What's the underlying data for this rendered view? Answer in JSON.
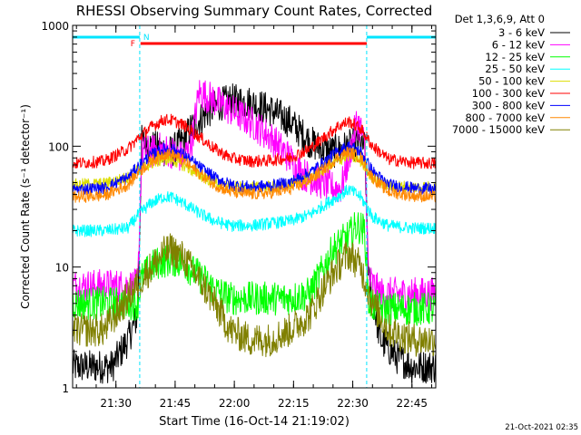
{
  "chart_data": {
    "type": "line",
    "title": "RHESSI Observing Summary Count Rates, Corrected",
    "xlabel": "Start Time (16-Oct-14 21:19:02)",
    "ylabel": "Corrected Count Rate (s⁻¹ detector⁻¹)",
    "yscale": "log",
    "ylim": [
      1,
      1000
    ],
    "xlim_minutes_after_21_19_02": [
      0,
      92
    ],
    "x_ticks": [
      {
        "label": "21:30",
        "t": 10.97
      },
      {
        "label": "21:45",
        "t": 25.97
      },
      {
        "label": "22:00",
        "t": 40.97
      },
      {
        "label": "22:15",
        "t": 55.97
      },
      {
        "label": "22:30",
        "t": 70.97
      },
      {
        "label": "22:45",
        "t": 85.97
      }
    ],
    "y_ticks": [
      {
        "label": "1",
        "value": 1
      },
      {
        "label": "10",
        "value": 10
      },
      {
        "label": "100",
        "value": 100
      },
      {
        "label": "1000",
        "value": 1000
      }
    ],
    "legend_title": "Det 1,3,6,9, Att 0",
    "legend_placement": "right-outside",
    "night_intervals_minutes": [
      [
        0,
        17
      ],
      [
        74.5,
        92
      ]
    ],
    "night_marker": "N",
    "flare_interval_minutes": [
      17.2,
      74.5
    ],
    "flare_marker": "F",
    "series": [
      {
        "name": "3 - 6 keV",
        "color": "#000000",
        "x": [
          0,
          10,
          14,
          16.5,
          17.5,
          20,
          22,
          25,
          28,
          30,
          34,
          37,
          40,
          45,
          50,
          55,
          60,
          63,
          66,
          68,
          70,
          72,
          74,
          75,
          78,
          82,
          86,
          88,
          92
        ],
        "y": [
          1.5,
          1.5,
          2.5,
          4,
          110,
          100,
          95,
          90,
          110,
          140,
          190,
          220,
          240,
          230,
          200,
          160,
          110,
          95,
          90,
          95,
          100,
          105,
          100,
          8,
          2.5,
          1.8,
          1.5,
          1.5,
          1.5
        ]
      },
      {
        "name": "6 - 12 keV",
        "color": "#ff00ff",
        "x": [
          0,
          10,
          16.5,
          17.5,
          20,
          22,
          25,
          28,
          30,
          32,
          35,
          40,
          45,
          50,
          55,
          58,
          60,
          63,
          66,
          68,
          70,
          72,
          73,
          74,
          75,
          78,
          82,
          86,
          92
        ],
        "y": [
          7,
          7,
          7,
          90,
          90,
          95,
          90,
          80,
          100,
          280,
          250,
          200,
          160,
          120,
          80,
          60,
          55,
          50,
          45,
          45,
          80,
          160,
          140,
          100,
          8,
          6,
          6,
          6,
          6
        ]
      },
      {
        "name": "12 - 25 keV",
        "color": "#00ff00",
        "x": [
          0,
          10,
          16.5,
          17.5,
          20,
          22,
          25,
          28,
          30,
          33,
          36,
          40,
          45,
          50,
          55,
          60,
          63,
          66,
          68,
          70,
          72,
          74,
          75,
          78,
          82,
          86,
          92
        ],
        "y": [
          5,
          5,
          5,
          8,
          10,
          11,
          11.5,
          11,
          9.5,
          8,
          6.5,
          5.5,
          5.5,
          5.5,
          5.5,
          6,
          9,
          14,
          16,
          18,
          22,
          20,
          5,
          4.5,
          4.5,
          4.5,
          4.5
        ]
      },
      {
        "name": "25 - 50 keV",
        "color": "#00ffff",
        "x": [
          0,
          8,
          14,
          17,
          20,
          23,
          25,
          28,
          32,
          36,
          40,
          45,
          50,
          55,
          60,
          64,
          67,
          70,
          73,
          76,
          80,
          86,
          92
        ],
        "y": [
          20,
          20,
          21,
          28,
          34,
          38,
          38,
          34,
          28,
          24,
          22,
          22,
          23,
          24,
          27,
          33,
          38,
          44,
          38,
          26,
          22,
          21,
          21
        ]
      },
      {
        "name": "50 - 100 keV",
        "color": "#dddd00",
        "x": [
          0,
          8,
          14,
          17,
          20,
          23,
          25,
          28,
          32,
          36,
          40,
          45,
          50,
          55,
          60,
          64,
          67,
          70,
          73,
          76,
          80,
          86,
          92
        ],
        "y": [
          48,
          49,
          55,
          65,
          72,
          78,
          78,
          70,
          58,
          50,
          46,
          45,
          46,
          48,
          55,
          65,
          75,
          85,
          75,
          55,
          47,
          46,
          46
        ]
      },
      {
        "name": "100 - 300 keV",
        "color": "#ff0000",
        "x": [
          0,
          8,
          14,
          17,
          20,
          23,
          25,
          28,
          32,
          36,
          40,
          45,
          50,
          55,
          60,
          64,
          67,
          70,
          73,
          76,
          80,
          86,
          92
        ],
        "y": [
          72,
          75,
          95,
          120,
          145,
          165,
          165,
          150,
          120,
          95,
          80,
          75,
          76,
          80,
          95,
          120,
          145,
          160,
          140,
          100,
          78,
          73,
          72
        ]
      },
      {
        "name": "300 - 800 keV",
        "color": "#0000ff",
        "x": [
          0,
          8,
          14,
          17,
          20,
          23,
          25,
          28,
          32,
          36,
          40,
          45,
          50,
          55,
          60,
          64,
          67,
          70,
          73,
          76,
          80,
          86,
          92
        ],
        "y": [
          44,
          45,
          55,
          70,
          85,
          95,
          95,
          85,
          68,
          55,
          48,
          46,
          47,
          50,
          60,
          75,
          90,
          100,
          90,
          62,
          48,
          45,
          44
        ]
      },
      {
        "name": "800 - 7000 keV",
        "color": "#ff8800",
        "x": [
          0,
          8,
          14,
          17,
          20,
          23,
          25,
          28,
          32,
          36,
          40,
          45,
          50,
          55,
          60,
          64,
          67,
          70,
          73,
          76,
          80,
          86,
          92
        ],
        "y": [
          38,
          39,
          48,
          62,
          76,
          86,
          86,
          76,
          60,
          48,
          42,
          40,
          41,
          44,
          52,
          66,
          80,
          90,
          80,
          55,
          42,
          39,
          38
        ]
      },
      {
        "name": "7000 - 15000 keV",
        "color": "#808000",
        "x": [
          0,
          8,
          12,
          16,
          20,
          23,
          25,
          28,
          32,
          36,
          40,
          45,
          50,
          55,
          60,
          64,
          67,
          70,
          73,
          76,
          80,
          86,
          92
        ],
        "y": [
          3,
          3,
          4.5,
          7,
          10,
          13,
          14,
          12,
          8,
          5,
          3,
          2.5,
          2.5,
          3,
          4,
          7,
          10,
          13,
          10,
          5,
          3,
          2.5,
          2.5
        ]
      }
    ],
    "timestamp": "21-Oct-2021 02:35"
  }
}
